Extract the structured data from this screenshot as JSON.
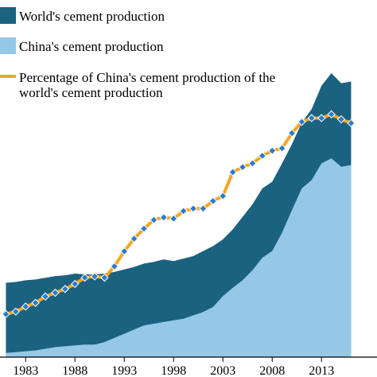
{
  "chart_data": {
    "type": "area",
    "title": "",
    "xlabel": "",
    "ylabel": "",
    "x": [
      1981,
      1982,
      1983,
      1984,
      1985,
      1986,
      1987,
      1988,
      1989,
      1990,
      1991,
      1992,
      1993,
      1994,
      1995,
      1996,
      1997,
      1998,
      1999,
      2000,
      2001,
      2002,
      2003,
      2004,
      2005,
      2006,
      2007,
      2008,
      2009,
      2010,
      2011,
      2012,
      2013,
      2014,
      2015,
      2016
    ],
    "xticks": [
      "1983",
      "1988",
      "1993",
      "1998",
      "2003",
      "2008",
      "2013"
    ],
    "colors": {
      "world": "#1b6281",
      "china": "#95c8e7",
      "percentage": "#f5a623",
      "marker": "#2b7cc9",
      "axis": "#000000"
    },
    "legend": {
      "placement": "top-left",
      "world": "World's cement production",
      "china": "China's cement production",
      "percentage_line1": "Percentage of China's cement production of the",
      "percentage_line2": "world's cement production"
    },
    "series": [
      {
        "key": "world",
        "name": "World's cement production",
        "type": "area",
        "values": [
          89,
          90,
          92,
          93,
          95,
          97,
          98,
          100,
          99,
          99,
          100,
          102,
          105,
          108,
          112,
          114,
          117,
          115,
          118,
          121,
          127,
          133,
          141,
          153,
          168,
          183,
          202,
          210,
          232,
          255,
          281,
          297,
          325,
          340,
          328,
          330
        ]
      },
      {
        "key": "china",
        "name": "China's cement production",
        "type": "area",
        "values": [
          5,
          6,
          7,
          8,
          10,
          12,
          13,
          14,
          15,
          15,
          18,
          23,
          28,
          33,
          38,
          40,
          42,
          44,
          46,
          50,
          54,
          60,
          73,
          83,
          92,
          104,
          119,
          127,
          149,
          176,
          202,
          212,
          232,
          238,
          228,
          230
        ]
      },
      {
        "key": "percentage",
        "name": "Percentage of China's cement production of the world's cement production",
        "type": "line",
        "values": [
          38,
          40,
          44,
          47,
          52,
          55,
          58,
          62,
          67,
          68,
          67,
          76,
          88,
          98,
          106,
          113,
          115,
          114,
          120,
          122,
          122,
          128,
          132,
          151,
          155,
          158,
          164,
          168,
          170,
          182,
          191,
          194,
          194,
          197,
          193,
          190
        ]
      }
    ]
  }
}
